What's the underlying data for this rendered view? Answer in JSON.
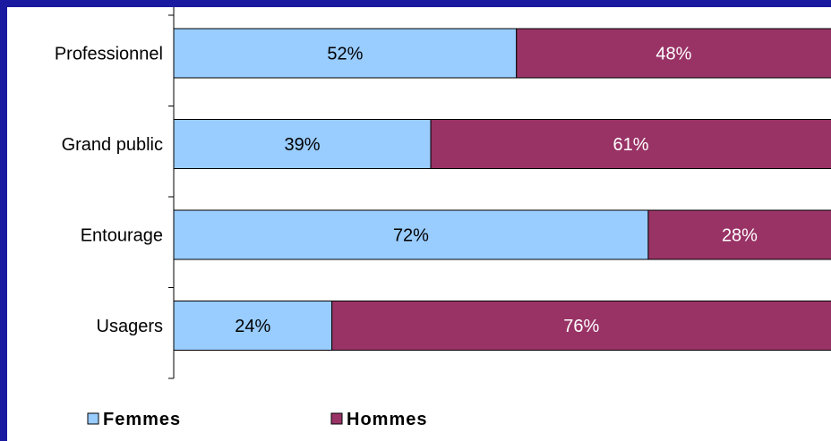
{
  "chart_data": {
    "type": "bar",
    "orientation": "horizontal",
    "stacked": "percent",
    "categories": [
      "Professionnel",
      "Grand public",
      "Entourage",
      "Usagers"
    ],
    "series": [
      {
        "name": "Femmes",
        "values": [
          52,
          39,
          72,
          24
        ],
        "color": "#99ccff",
        "label_color": "#000000"
      },
      {
        "name": "Hommes",
        "values": [
          48,
          61,
          28,
          76
        ],
        "color": "#993366",
        "label_color": "#ffffff"
      }
    ],
    "value_suffix": "%",
    "xlim": [
      0,
      100
    ],
    "legend_position": "bottom-left",
    "grid": false,
    "frame_color": "#1a1aa0"
  }
}
